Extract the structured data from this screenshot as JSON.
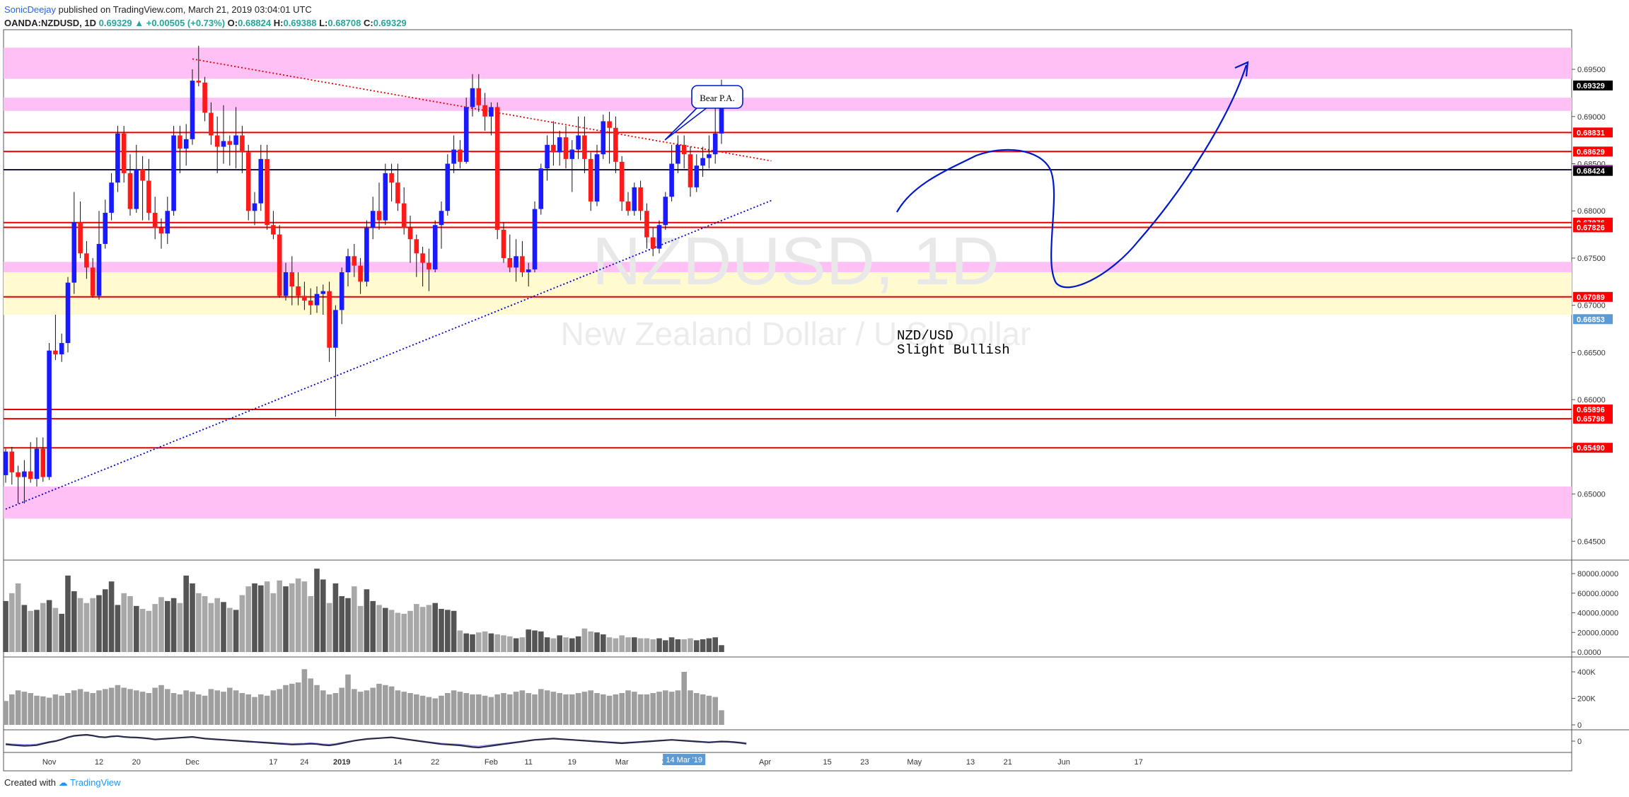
{
  "header": {
    "author": "SonicDeejay",
    "published": "published on TradingView.com, March 21, 2019 03:04:01 UTC",
    "symbol": "OANDA:NZDUSD, 1D",
    "last": "0.69329",
    "change": "▲ +0.00505 (+0.73%)",
    "open_label": "O:",
    "open": "0.68824",
    "high_label": "H:",
    "high": "0.69388",
    "low_label": "L:",
    "low": "0.68708",
    "close_label": "C:",
    "close": "0.69329"
  },
  "footer": {
    "created_with": "Created with",
    "brand": "TradingView"
  },
  "watermark": {
    "symbol": "NZDUSD, 1D",
    "name": "New Zealand Dollar / U.S. Dollar"
  },
  "annotations": {
    "callout": "Bear P.A.",
    "note_line1": "NZD/USD",
    "note_line2": "Slight Bullish"
  },
  "colors": {
    "bull": "#1a1aff",
    "bear": "#ff1a1a",
    "zone_pink": "#ffc0f5",
    "zone_yellow": "#fffad0",
    "level_line": "#e60000",
    "support_line": "#0000cc",
    "resistance_line": "#e60000",
    "arrow": "#0018cc"
  },
  "chart_data": {
    "type": "candlestick",
    "price_axis": {
      "range": [
        0.643,
        0.6992
      ],
      "ticks": [
        "0.64500",
        "0.65000",
        "0.65500",
        "0.66000",
        "0.66500",
        "0.67000",
        "0.67500",
        "0.68000",
        "0.68500",
        "0.69000",
        "0.69500"
      ]
    },
    "time_axis": {
      "labels": [
        {
          "label": "Nov",
          "i": 7
        },
        {
          "label": "12",
          "i": 15
        },
        {
          "label": "20",
          "i": 21
        },
        {
          "label": "Dec",
          "i": 30
        },
        {
          "label": "17",
          "i": 43
        },
        {
          "label": "24",
          "i": 48
        },
        {
          "label": "2019",
          "i": 54
        },
        {
          "label": "14",
          "i": 63
        },
        {
          "label": "22",
          "i": 69
        },
        {
          "label": "Feb",
          "i": 78
        },
        {
          "label": "11",
          "i": 84
        },
        {
          "label": "19",
          "i": 91
        },
        {
          "label": "Mar",
          "i": 99
        },
        {
          "label": "11",
          "i": 106
        },
        {
          "label": "Apr",
          "i": 122
        },
        {
          "label": "15",
          "i": 132
        },
        {
          "label": "23",
          "i": 138
        },
        {
          "label": "May",
          "i": 146
        },
        {
          "label": "13",
          "i": 155
        },
        {
          "label": "21",
          "i": 161
        },
        {
          "label": "Jun",
          "i": 170
        },
        {
          "label": "17",
          "i": 182
        }
      ],
      "cursor_label": {
        "label": "14 Mar '19",
        "i": 109
      }
    },
    "price_labels": [
      {
        "value": "0.69329",
        "price": 0.69329,
        "bg": "#000000"
      },
      {
        "value": "0.68831",
        "price": 0.68831,
        "bg": "#ff0000"
      },
      {
        "value": "0.68629",
        "price": 0.68629,
        "bg": "#ff0000"
      },
      {
        "value": "0.68436",
        "price": 0.68436,
        "bg": "#e040fb"
      },
      {
        "value": "0.68424",
        "price": 0.68424,
        "bg": "#000000"
      },
      {
        "value": "0.67876",
        "price": 0.67876,
        "bg": "#ff0000"
      },
      {
        "value": "0.67826",
        "price": 0.67826,
        "bg": "#ff0000"
      },
      {
        "value": "0.67089",
        "price": 0.67089,
        "bg": "#ff0000"
      },
      {
        "value": "0.66853",
        "price": 0.66853,
        "bg": "#5b9bd5"
      },
      {
        "value": "0.65896",
        "price": 0.65896,
        "bg": "#ff0000"
      },
      {
        "value": "0.65798",
        "price": 0.65798,
        "bg": "#ff0000"
      },
      {
        "value": "0.65490",
        "price": 0.6549,
        "bg": "#ff0000"
      }
    ],
    "zones": [
      {
        "from": 0.694,
        "to": 0.6973,
        "kind": "pink"
      },
      {
        "from": 0.6906,
        "to": 0.692,
        "kind": "pink"
      },
      {
        "from": 0.6735,
        "to": 0.6746,
        "kind": "pink"
      },
      {
        "from": 0.669,
        "to": 0.6735,
        "kind": "yellow"
      },
      {
        "from": 0.6474,
        "to": 0.6508,
        "kind": "pink"
      }
    ],
    "levels": [
      0.68831,
      0.68629,
      0.67876,
      0.67826,
      0.67089,
      0.65896,
      0.65798,
      0.6549
    ],
    "dark_level": 0.68436,
    "trendlines": [
      {
        "style": "dotted-red",
        "from": {
          "i": 30,
          "p": 0.6961
        },
        "to": {
          "i": 123,
          "p": 0.6853
        }
      },
      {
        "style": "dotted-blue",
        "from": {
          "i": 0,
          "p": 0.6484
        },
        "to": {
          "i": 123,
          "p": 0.6811
        }
      }
    ],
    "candles": [
      [
        0.652,
        0.6548,
        0.6512,
        0.6545
      ],
      [
        0.6545,
        0.655,
        0.651,
        0.6523
      ],
      [
        0.6523,
        0.653,
        0.649,
        0.6518
      ],
      [
        0.6518,
        0.6536,
        0.649,
        0.6524
      ],
      [
        0.6524,
        0.6555,
        0.6512,
        0.6516
      ],
      [
        0.6516,
        0.656,
        0.6508,
        0.6548
      ],
      [
        0.6548,
        0.656,
        0.6513,
        0.6518
      ],
      [
        0.6518,
        0.666,
        0.6515,
        0.6652
      ],
      [
        0.6652,
        0.669,
        0.6642,
        0.6648
      ],
      [
        0.6648,
        0.667,
        0.664,
        0.666
      ],
      [
        0.666,
        0.673,
        0.665,
        0.6724
      ],
      [
        0.6724,
        0.682,
        0.6712,
        0.6788
      ],
      [
        0.6788,
        0.681,
        0.675,
        0.6755
      ],
      [
        0.6755,
        0.6768,
        0.6728,
        0.674
      ],
      [
        0.674,
        0.675,
        0.6708,
        0.671
      ],
      [
        0.671,
        0.68,
        0.6706,
        0.6765
      ],
      [
        0.6765,
        0.6812,
        0.676,
        0.6798
      ],
      [
        0.6798,
        0.684,
        0.679,
        0.683
      ],
      [
        0.683,
        0.689,
        0.682,
        0.6882
      ],
      [
        0.6882,
        0.689,
        0.683,
        0.684
      ],
      [
        0.684,
        0.686,
        0.6795,
        0.6802
      ],
      [
        0.6802,
        0.687,
        0.6798,
        0.6844
      ],
      [
        0.6844,
        0.6858,
        0.679,
        0.6832
      ],
      [
        0.6832,
        0.6855,
        0.679,
        0.6798
      ],
      [
        0.6798,
        0.6815,
        0.677,
        0.6782
      ],
      [
        0.6782,
        0.6792,
        0.676,
        0.6776
      ],
      [
        0.6776,
        0.6815,
        0.6765,
        0.68
      ],
      [
        0.68,
        0.689,
        0.6795,
        0.688
      ],
      [
        0.688,
        0.689,
        0.684,
        0.6866
      ],
      [
        0.6866,
        0.6892,
        0.6848,
        0.6876
      ],
      [
        0.6876,
        0.695,
        0.687,
        0.6938
      ],
      [
        0.6938,
        0.6975,
        0.6932,
        0.6936
      ],
      [
        0.6936,
        0.6942,
        0.6895,
        0.6904
      ],
      [
        0.6904,
        0.6915,
        0.687,
        0.688
      ],
      [
        0.688,
        0.69,
        0.684,
        0.6868
      ],
      [
        0.6868,
        0.6912,
        0.685,
        0.6874
      ],
      [
        0.6874,
        0.688,
        0.6848,
        0.687
      ],
      [
        0.687,
        0.691,
        0.6845,
        0.688
      ],
      [
        0.688,
        0.689,
        0.684,
        0.6862
      ],
      [
        0.6862,
        0.687,
        0.679,
        0.68
      ],
      [
        0.68,
        0.682,
        0.6785,
        0.6808
      ],
      [
        0.6808,
        0.687,
        0.68,
        0.6855
      ],
      [
        0.6855,
        0.687,
        0.678,
        0.6785
      ],
      [
        0.6785,
        0.68,
        0.677,
        0.6775
      ],
      [
        0.6775,
        0.6785,
        0.6708,
        0.671
      ],
      [
        0.671,
        0.6745,
        0.6705,
        0.6735
      ],
      [
        0.6735,
        0.6752,
        0.67,
        0.672
      ],
      [
        0.672,
        0.6735,
        0.67,
        0.671
      ],
      [
        0.671,
        0.6725,
        0.6695,
        0.6705
      ],
      [
        0.6705,
        0.6718,
        0.669,
        0.67
      ],
      [
        0.67,
        0.672,
        0.6692,
        0.6712
      ],
      [
        0.6712,
        0.6722,
        0.669,
        0.6715
      ],
      [
        0.6715,
        0.6725,
        0.664,
        0.6655
      ],
      [
        0.6655,
        0.67,
        0.6582,
        0.6695
      ],
      [
        0.6695,
        0.674,
        0.668,
        0.6735
      ],
      [
        0.6735,
        0.676,
        0.672,
        0.6752
      ],
      [
        0.6752,
        0.6765,
        0.673,
        0.6742
      ],
      [
        0.6742,
        0.675,
        0.6712,
        0.6725
      ],
      [
        0.6725,
        0.679,
        0.672,
        0.6782
      ],
      [
        0.6782,
        0.6815,
        0.677,
        0.68
      ],
      [
        0.68,
        0.683,
        0.678,
        0.679
      ],
      [
        0.679,
        0.685,
        0.6785,
        0.684
      ],
      [
        0.684,
        0.685,
        0.681,
        0.683
      ],
      [
        0.683,
        0.685,
        0.68,
        0.6808
      ],
      [
        0.6808,
        0.6825,
        0.6775,
        0.6782
      ],
      [
        0.6782,
        0.6795,
        0.6745,
        0.677
      ],
      [
        0.677,
        0.6775,
        0.673,
        0.6755
      ],
      [
        0.6755,
        0.6762,
        0.672,
        0.6745
      ],
      [
        0.6745,
        0.676,
        0.6715,
        0.6738
      ],
      [
        0.6738,
        0.679,
        0.6735,
        0.6785
      ],
      [
        0.6785,
        0.681,
        0.676,
        0.68
      ],
      [
        0.68,
        0.686,
        0.6795,
        0.685
      ],
      [
        0.685,
        0.688,
        0.684,
        0.6865
      ],
      [
        0.6865,
        0.6875,
        0.6845,
        0.6852
      ],
      [
        0.6852,
        0.692,
        0.685,
        0.691
      ],
      [
        0.691,
        0.6945,
        0.69,
        0.693
      ],
      [
        0.693,
        0.6945,
        0.6905,
        0.6912
      ],
      [
        0.6912,
        0.6925,
        0.6885,
        0.69
      ],
      [
        0.69,
        0.6915,
        0.688,
        0.691
      ],
      [
        0.691,
        0.6915,
        0.677,
        0.678
      ],
      [
        0.678,
        0.6788,
        0.6745,
        0.675
      ],
      [
        0.675,
        0.6775,
        0.6735,
        0.674
      ],
      [
        0.674,
        0.677,
        0.6725,
        0.6752
      ],
      [
        0.6752,
        0.6768,
        0.673,
        0.6735
      ],
      [
        0.6735,
        0.6745,
        0.672,
        0.6738
      ],
      [
        0.6738,
        0.681,
        0.6735,
        0.6802
      ],
      [
        0.6802,
        0.685,
        0.6796,
        0.6845
      ],
      [
        0.6845,
        0.688,
        0.6832,
        0.687
      ],
      [
        0.687,
        0.6895,
        0.6848,
        0.6862
      ],
      [
        0.6862,
        0.6885,
        0.6848,
        0.6878
      ],
      [
        0.6878,
        0.689,
        0.6845,
        0.6855
      ],
      [
        0.6855,
        0.6875,
        0.682,
        0.6865
      ],
      [
        0.6865,
        0.69,
        0.6855,
        0.688
      ],
      [
        0.688,
        0.69,
        0.684,
        0.6855
      ],
      [
        0.6855,
        0.6862,
        0.68,
        0.681
      ],
      [
        0.681,
        0.687,
        0.6805,
        0.686
      ],
      [
        0.686,
        0.6902,
        0.6855,
        0.6895
      ],
      [
        0.6895,
        0.6905,
        0.685,
        0.6888
      ],
      [
        0.6888,
        0.69,
        0.684,
        0.6852
      ],
      [
        0.6852,
        0.6858,
        0.68,
        0.681
      ],
      [
        0.681,
        0.682,
        0.6795,
        0.68
      ],
      [
        0.68,
        0.683,
        0.6795,
        0.6825
      ],
      [
        0.6825,
        0.6832,
        0.679,
        0.68
      ],
      [
        0.68,
        0.6808,
        0.676,
        0.6772
      ],
      [
        0.6772,
        0.6782,
        0.6752,
        0.676
      ],
      [
        0.676,
        0.679,
        0.6755,
        0.6785
      ],
      [
        0.6785,
        0.682,
        0.678,
        0.6815
      ],
      [
        0.6815,
        0.687,
        0.681,
        0.685
      ],
      [
        0.685,
        0.688,
        0.684,
        0.687
      ],
      [
        0.687,
        0.688,
        0.6845,
        0.686
      ],
      [
        0.686,
        0.6868,
        0.6815,
        0.6825
      ],
      [
        0.6825,
        0.686,
        0.682,
        0.6848
      ],
      [
        0.6848,
        0.6868,
        0.6836,
        0.6856
      ],
      [
        0.6856,
        0.688,
        0.6845,
        0.686
      ],
      [
        0.686,
        0.692,
        0.685,
        0.6882
      ],
      [
        0.6882,
        0.6939,
        0.6871,
        0.6933
      ]
    ],
    "volume_axis": {
      "ticks": [
        "0.0000",
        "20000.0000",
        "40000.0000",
        "60000.0000",
        "80000.0000"
      ],
      "max": 88000
    },
    "volume": [
      52,
      60,
      70,
      48,
      42,
      43,
      50,
      53,
      45,
      39,
      78,
      62,
      55,
      50,
      55,
      58,
      64,
      72,
      48,
      60,
      57,
      47,
      44,
      42,
      49,
      56,
      52,
      55,
      50,
      78,
      70,
      60,
      57,
      50,
      55,
      51,
      45,
      43,
      58,
      67,
      70,
      68,
      72,
      60,
      73,
      67,
      70,
      75,
      72,
      57,
      85,
      74,
      50,
      70,
      57,
      55,
      67,
      47,
      64,
      52,
      48,
      45,
      43,
      40,
      39,
      42,
      49,
      46,
      48,
      50,
      44,
      43,
      42,
      22,
      19,
      18,
      20,
      21,
      19,
      18,
      17,
      16,
      14,
      15,
      23,
      22,
      21,
      15,
      14,
      17,
      15,
      14,
      16,
      24,
      21,
      20,
      18,
      15,
      14,
      17,
      15,
      15,
      14,
      14,
      13,
      14,
      12,
      15,
      13,
      13,
      14,
      12,
      13,
      14,
      15,
      7
    ],
    "volume2_axis": {
      "ticks": [
        "0",
        "200K",
        "400K"
      ],
      "max": 480
    },
    "volume2": [
      180,
      230,
      260,
      250,
      240,
      220,
      215,
      205,
      230,
      220,
      240,
      260,
      270,
      250,
      240,
      260,
      270,
      280,
      300,
      280,
      270,
      260,
      250,
      240,
      280,
      300,
      270,
      240,
      230,
      260,
      250,
      230,
      220,
      270,
      260,
      250,
      280,
      260,
      240,
      230,
      210,
      230,
      220,
      260,
      270,
      300,
      310,
      320,
      420,
      350,
      300,
      260,
      230,
      240,
      280,
      380,
      270,
      250,
      260,
      280,
      310,
      300,
      290,
      260,
      250,
      240,
      230,
      220,
      210,
      200,
      220,
      240,
      260,
      250,
      240,
      230,
      230,
      220,
      210,
      230,
      240,
      230,
      250,
      260,
      240,
      230,
      270,
      260,
      250,
      240,
      230,
      230,
      240,
      250,
      260,
      240,
      230,
      220,
      230,
      240,
      260,
      250,
      230,
      230,
      240,
      250,
      260,
      250,
      260,
      400,
      260,
      240,
      230,
      220,
      210,
      110
    ],
    "oscillator_axis": {
      "ticks": [
        "0"
      ]
    },
    "oscillator": [
      -15,
      -18,
      -20,
      -22,
      -21,
      -19,
      -12,
      -5,
      0,
      8,
      18,
      25,
      28,
      30,
      26,
      20,
      18,
      22,
      24,
      20,
      18,
      17,
      15,
      12,
      8,
      10,
      12,
      14,
      16,
      18,
      20,
      16,
      12,
      10,
      8,
      6,
      4,
      2,
      0,
      -2,
      -4,
      -6,
      -8,
      -10,
      -12,
      -14,
      -16,
      -15,
      -14,
      -12,
      -14,
      -18,
      -20,
      -16,
      -10,
      -4,
      2,
      6,
      10,
      12,
      14,
      16,
      18,
      14,
      10,
      6,
      2,
      -2,
      -6,
      -10,
      -14,
      -16,
      -18,
      -20,
      -24,
      -28,
      -30,
      -26,
      -22,
      -18,
      -14,
      -10,
      -6,
      -2,
      2,
      6,
      8,
      10,
      12,
      10,
      8,
      6,
      4,
      2,
      0,
      -2,
      -4,
      -6,
      -8,
      -10,
      -8,
      -6,
      -4,
      -2,
      0,
      2,
      4,
      6,
      4,
      2,
      0,
      -2,
      -4,
      -6,
      -4,
      -2,
      -3,
      -5,
      -8,
      -12
    ]
  }
}
